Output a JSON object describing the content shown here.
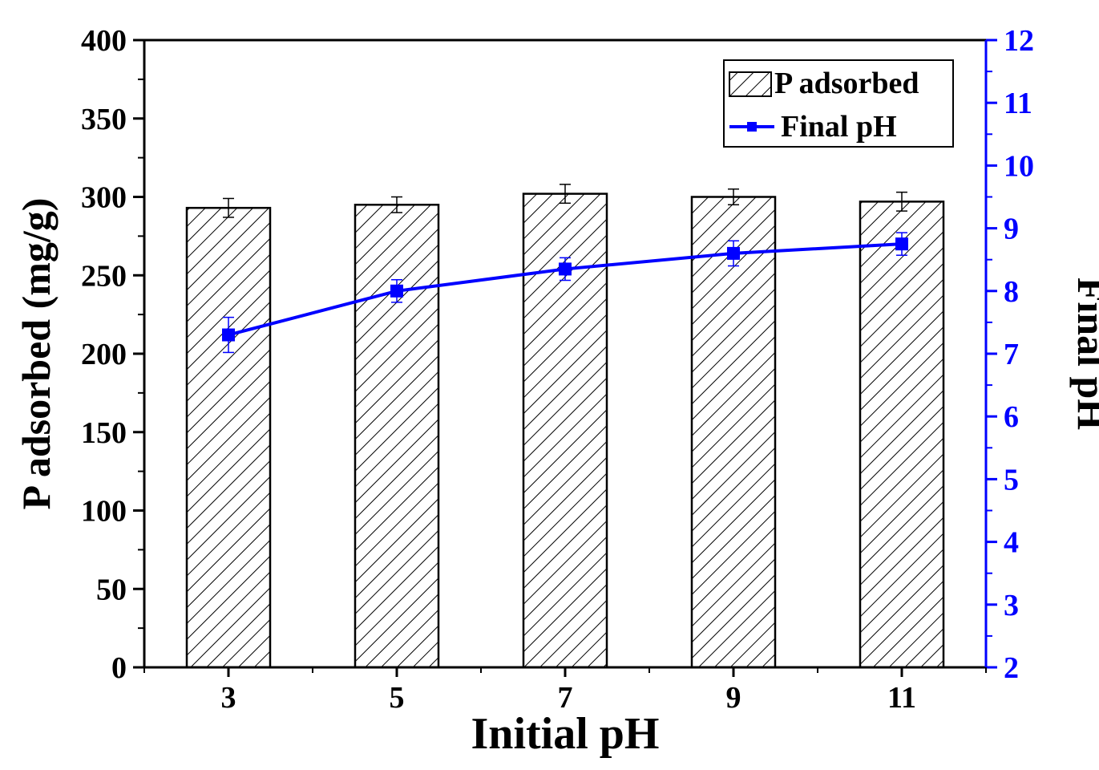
{
  "chart_data": {
    "type": "bar",
    "xlabel": "Initial pH",
    "ylabel": "P adsorbed (mg/g)",
    "y2label": "Final pH",
    "categories": [
      "3",
      "5",
      "7",
      "9",
      "11"
    ],
    "ylim": [
      0,
      400
    ],
    "y_ticks": [
      "0",
      "50",
      "100",
      "150",
      "200",
      "250",
      "300",
      "350",
      "400"
    ],
    "y2lim": [
      2,
      12
    ],
    "y2_ticks": [
      "2",
      "3",
      "4",
      "5",
      "6",
      "7",
      "8",
      "9",
      "10",
      "11",
      "12"
    ],
    "legend_position": "top-right",
    "grid": false,
    "series": [
      {
        "name": "P adsorbed",
        "kind": "bar",
        "axis": "left",
        "pattern": "diagonal-hatch",
        "color": "#000000",
        "values": [
          293,
          295,
          302,
          300,
          297
        ],
        "errors": [
          6,
          5,
          6,
          5,
          6
        ]
      },
      {
        "name": "Final pH",
        "kind": "line",
        "axis": "right",
        "marker": "square",
        "color": "#0000ff",
        "values": [
          7.3,
          8.0,
          8.35,
          8.6,
          8.75
        ],
        "errors": [
          0.28,
          0.18,
          0.18,
          0.2,
          0.18
        ]
      }
    ]
  }
}
